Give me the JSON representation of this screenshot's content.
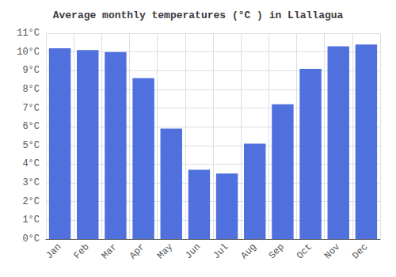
{
  "chart_data": {
    "type": "bar",
    "title": "Average monthly temperatures (°C ) in Llallagua",
    "categories": [
      "Jan",
      "Feb",
      "Mar",
      "Apr",
      "May",
      "Jun",
      "Jul",
      "Aug",
      "Sep",
      "Oct",
      "Nov",
      "Dec"
    ],
    "values": [
      10.2,
      10.1,
      10.0,
      8.6,
      5.9,
      3.7,
      3.5,
      5.1,
      7.2,
      9.1,
      10.3,
      10.4
    ],
    "ylim": [
      0,
      11
    ],
    "yticks": [
      {
        "value": 0,
        "label": "0°C"
      },
      {
        "value": 1,
        "label": "1°C"
      },
      {
        "value": 2,
        "label": "2°C"
      },
      {
        "value": 3,
        "label": "3°C"
      },
      {
        "value": 4,
        "label": "4°C"
      },
      {
        "value": 5,
        "label": "5°C"
      },
      {
        "value": 6,
        "label": "6°C"
      },
      {
        "value": 7,
        "label": "7°C"
      },
      {
        "value": 8,
        "label": "8°C"
      },
      {
        "value": 9,
        "label": "9°C"
      },
      {
        "value": 10,
        "label": "10°C"
      },
      {
        "value": 11,
        "label": "11°C"
      }
    ],
    "grid": true
  }
}
